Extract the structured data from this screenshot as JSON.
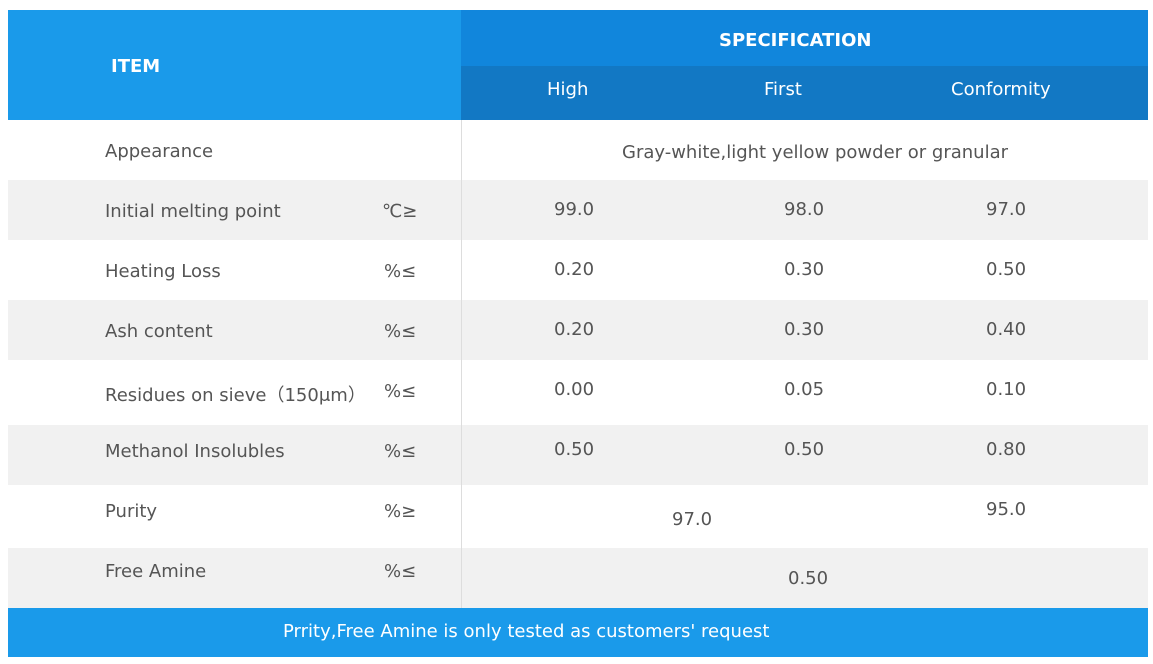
{
  "header": {
    "item": "ITEM",
    "specification": "SPECIFICATION",
    "grades": [
      "High",
      "First",
      "Conformity"
    ]
  },
  "rows": [
    {
      "name": "Appearance",
      "unit": "",
      "merged": "Gray-white,light yellow powder or granular"
    },
    {
      "name": "Initial melting point",
      "unit": "℃≥",
      "high": "99.0",
      "first": "98.0",
      "conformity": "97.0"
    },
    {
      "name": "Heating Loss",
      "unit": "%≤",
      "high": "0.20",
      "first": "0.30",
      "conformity": "0.50"
    },
    {
      "name": "Ash content",
      "unit": "%≤",
      "high": "0.20",
      "first": "0.30",
      "conformity": "0.40"
    },
    {
      "name": "Residues on sieve（150μm）",
      "unit": "%≤",
      "high": "0.00",
      "first": "0.05",
      "conformity": "0.10"
    },
    {
      "name": "Methanol Insolubles",
      "unit": "%≤",
      "high": "0.50",
      "first": "0.50",
      "conformity": "0.80"
    },
    {
      "name": "Purity",
      "unit": "%≥",
      "high_first": "97.0",
      "conformity": "95.0"
    },
    {
      "name": "Free Amine",
      "unit": "%≤",
      "all": "0.50"
    }
  ],
  "footer": "Prrity,Free Amine is only tested as customers' request"
}
